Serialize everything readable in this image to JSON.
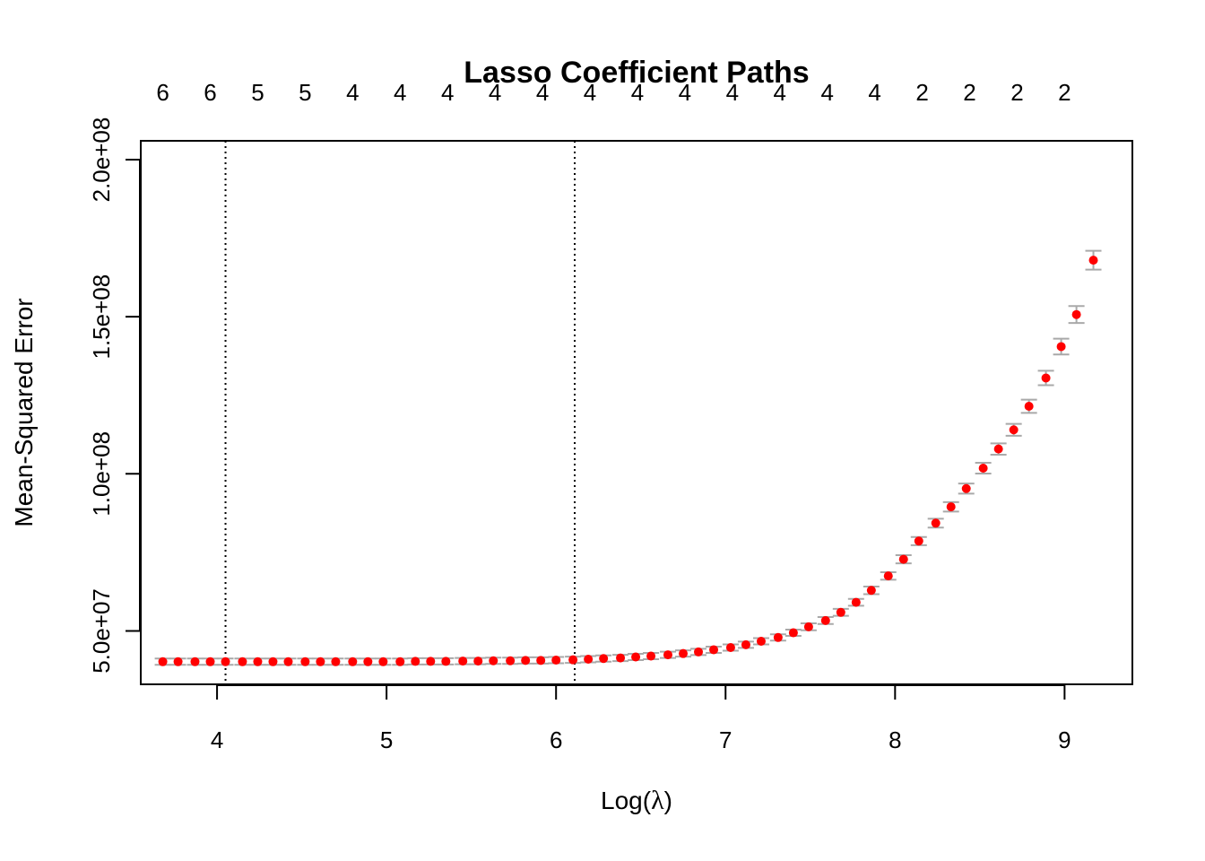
{
  "chart_data": {
    "type": "scatter",
    "title": "Lasso Coefficient Paths",
    "xlabel_prefix": "Log(",
    "xlabel_symbol": "λ",
    "xlabel_suffix": ")",
    "ylabel": "Mean-Squared Error",
    "xlim": [
      3.55,
      9.4
    ],
    "ylim": [
      33000000,
      206000000
    ],
    "x_ticks": [
      4,
      5,
      6,
      7,
      8,
      9
    ],
    "x_tick_labels": [
      "4",
      "5",
      "6",
      "7",
      "8",
      "9"
    ],
    "y_ticks": [
      50000000,
      100000000,
      150000000,
      200000000
    ],
    "y_tick_labels": [
      "5.0e+07",
      "1.0e+08",
      "1.5e+08",
      "2.0e+08"
    ],
    "vlines": [
      4.05,
      6.11
    ],
    "top_axis": {
      "x": [
        3.68,
        3.96,
        4.24,
        4.52,
        4.8,
        5.08,
        5.36,
        5.64,
        5.92,
        6.2,
        6.48,
        6.76,
        7.04,
        7.32,
        7.6,
        7.88,
        8.16,
        8.44,
        8.72,
        9.0
      ],
      "labels": [
        "6",
        "6",
        "5",
        "5",
        "4",
        "4",
        "4",
        "4",
        "4",
        "4",
        "4",
        "4",
        "4",
        "4",
        "4",
        "4",
        "2",
        "2",
        "2",
        "2"
      ]
    },
    "colors": {
      "point": "#ff0000",
      "errorbar": "#a9a9a9",
      "axis": "#000000"
    },
    "series": [
      {
        "x": [
          3.68,
          3.77,
          3.87,
          3.96,
          4.05,
          4.15,
          4.24,
          4.33,
          4.42,
          4.52,
          4.61,
          4.7,
          4.8,
          4.89,
          4.98,
          5.08,
          5.17,
          5.26,
          5.35,
          5.45,
          5.54,
          5.63,
          5.73,
          5.82,
          5.91,
          6.0,
          6.1,
          6.19,
          6.28,
          6.38,
          6.47,
          6.56,
          6.66,
          6.75,
          6.84,
          6.93,
          7.03,
          7.12,
          7.21,
          7.31,
          7.4,
          7.49,
          7.59,
          7.68,
          7.77,
          7.86,
          7.96,
          8.05,
          8.14,
          8.24,
          8.33,
          8.42,
          8.52,
          8.61,
          8.7,
          8.79,
          8.89,
          8.98,
          9.07,
          9.17
        ],
        "y": [
          40200000,
          40200000,
          40200000,
          40200000,
          40200000,
          40200000,
          40200000,
          40200000,
          40200000,
          40200000,
          40200000,
          40200000,
          40200000,
          40200000,
          40200000,
          40200000,
          40300000,
          40300000,
          40300000,
          40400000,
          40400000,
          40500000,
          40500000,
          40600000,
          40600000,
          40700000,
          40800000,
          41000000,
          41200000,
          41400000,
          41700000,
          42000000,
          42400000,
          42800000,
          43300000,
          44000000,
          44700000,
          45600000,
          46700000,
          47900000,
          49400000,
          51300000,
          53300000,
          55900000,
          59100000,
          62900000,
          67500000,
          72800000,
          78600000,
          84300000,
          89500000,
          95300000,
          101800000,
          107900000,
          114000000,
          121500000,
          130500000,
          140500000,
          150700000,
          168000000
        ],
        "err": [
          1000000,
          1000000,
          1000000,
          1000000,
          1000000,
          1000000,
          1000000,
          1000000,
          1000000,
          1000000,
          1000000,
          1000000,
          1000000,
          1000000,
          1000000,
          1000000,
          1000000,
          1000000,
          1000000,
          1000000,
          1000000,
          1000000,
          1000000,
          1000000,
          1000000,
          1000000,
          1000000,
          1000000,
          1000000,
          1000000,
          1000000,
          1000000,
          1000000,
          1000000,
          1000000,
          1000000,
          1000000,
          1000000,
          1000000,
          1000000,
          1000000,
          1100000,
          1100000,
          1100000,
          1100000,
          1200000,
          1200000,
          1300000,
          1300000,
          1400000,
          1500000,
          1600000,
          1700000,
          1800000,
          1900000,
          2100000,
          2300000,
          2500000,
          2700000,
          3000000
        ]
      }
    ]
  }
}
